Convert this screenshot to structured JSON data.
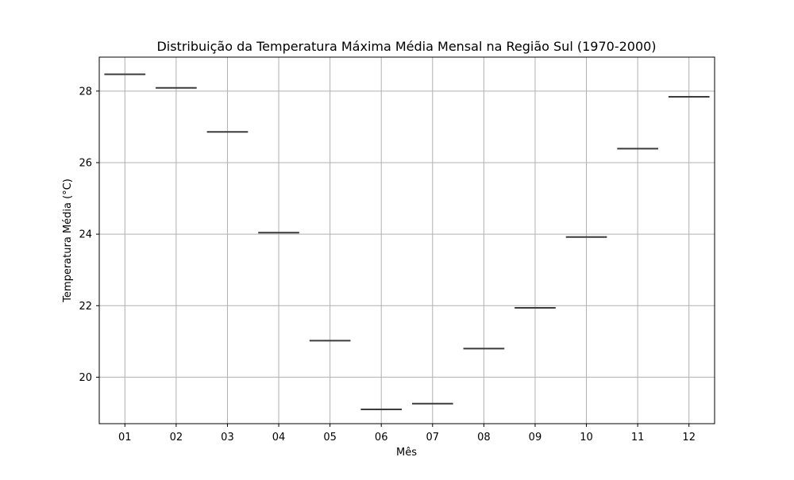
{
  "chart_data": {
    "type": "box",
    "title": "Distribuição da Temperatura Máxima Média Mensal na Região Sul (1970-2000)",
    "xlabel": "Mês",
    "ylabel": "Temperatura Média (°C)",
    "categories": [
      "01",
      "02",
      "03",
      "04",
      "05",
      "06",
      "07",
      "08",
      "09",
      "10",
      "11",
      "12"
    ],
    "values": [
      28.47,
      28.09,
      26.86,
      24.04,
      21.02,
      19.1,
      19.26,
      20.8,
      21.94,
      23.92,
      26.39,
      27.84
    ],
    "ylim": [
      18.7,
      28.95
    ],
    "yticks": [
      20,
      22,
      24,
      26,
      28
    ],
    "grid": true,
    "box_color": "#3b3b3b"
  }
}
